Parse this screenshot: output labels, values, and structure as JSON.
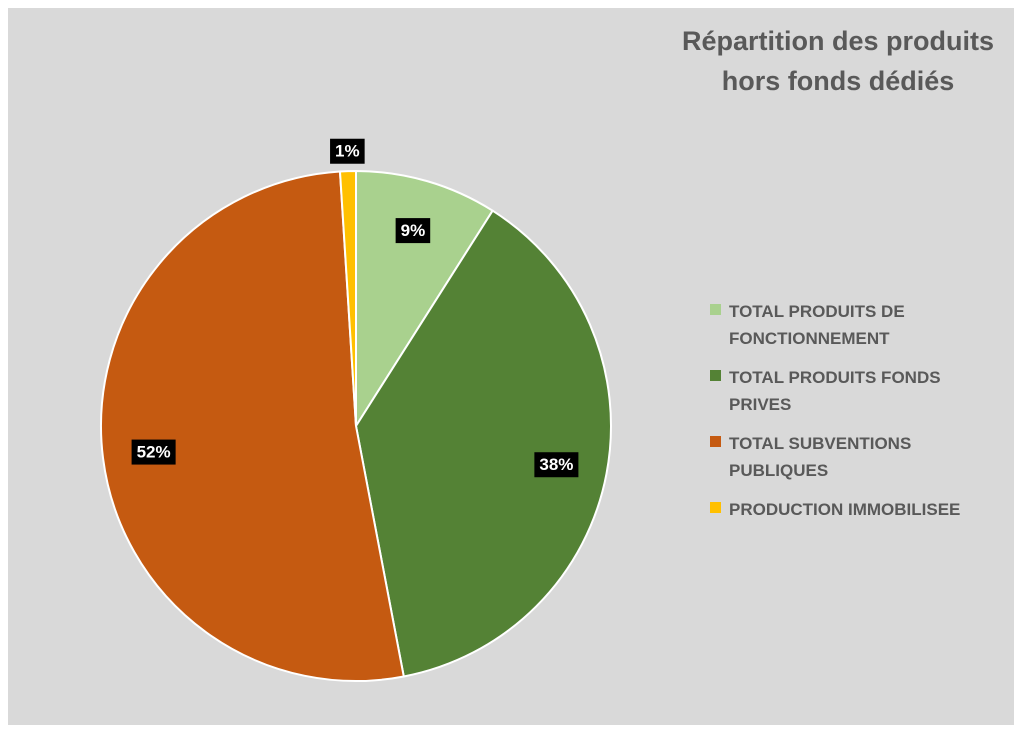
{
  "chart_data": {
    "type": "pie",
    "title": [
      "Répartition des produits",
      "hors fonds dédiés"
    ],
    "categories": [
      "TOTAL PRODUITS DE FONCTIONNEMENT",
      "TOTAL PRODUITS FONDS PRIVES",
      "TOTAL SUBVENTIONS PUBLIQUES",
      "PRODUCTION IMMOBILISEE"
    ],
    "values": [
      9,
      38,
      52,
      1
    ],
    "value_labels": [
      "9%",
      "38%",
      "52%",
      "1%"
    ],
    "colors": [
      "#a9d18e",
      "#548235",
      "#c55a11",
      "#ffc000"
    ],
    "legend": "right"
  }
}
